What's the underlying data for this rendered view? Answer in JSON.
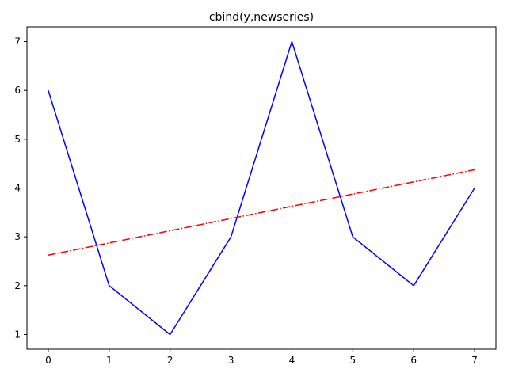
{
  "chart_data": {
    "type": "line",
    "title": "cbind(y,newseries)",
    "xlabel": "",
    "ylabel": "",
    "x": [
      0,
      1,
      2,
      3,
      4,
      5,
      6,
      7
    ],
    "xlim": [
      -0.35,
      7.35
    ],
    "ylim": [
      0.7,
      7.3
    ],
    "xticks": [
      0,
      1,
      2,
      3,
      4,
      5,
      6,
      7
    ],
    "yticks": [
      1,
      2,
      3,
      4,
      5,
      6,
      7
    ],
    "grid": false,
    "legend": "none",
    "series": [
      {
        "values": [
          6,
          2,
          1,
          3,
          7,
          3,
          2,
          4
        ],
        "color": "#0000ff",
        "style": "solid"
      },
      {
        "values": [
          2.625,
          2.875,
          3.125,
          3.375,
          3.625,
          3.875,
          4.125,
          4.375
        ],
        "color": "#ff0000",
        "style": "dashdot"
      }
    ]
  }
}
